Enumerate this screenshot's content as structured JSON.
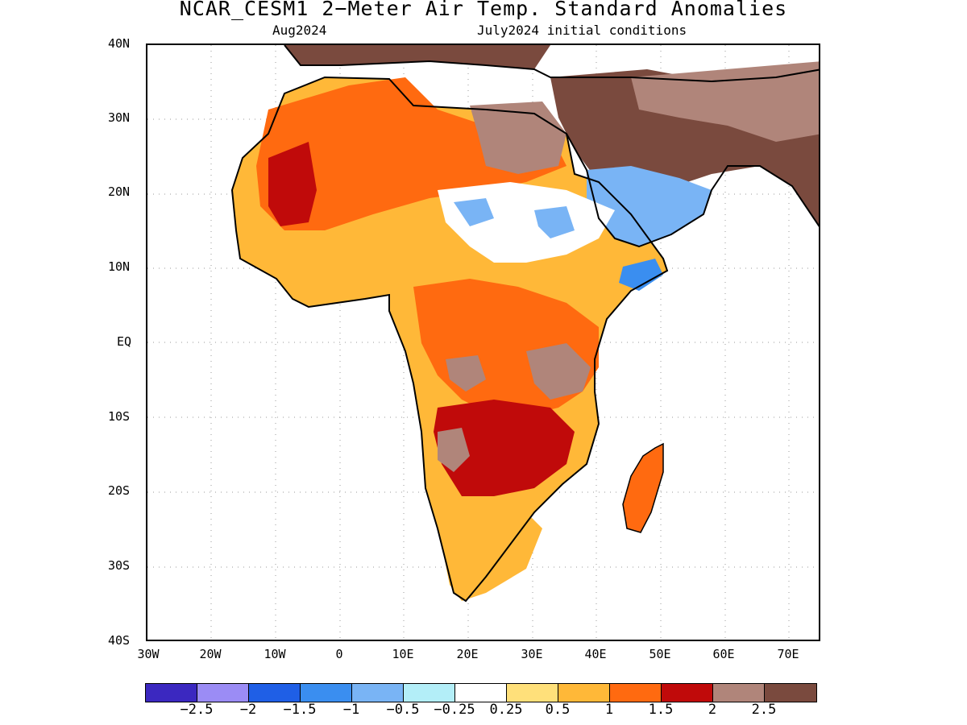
{
  "title": "NCAR_CESM1 2−Meter Air Temp. Standard Anomalies",
  "subtitle_left": "Aug2024",
  "subtitle_right": "July2024 initial conditions",
  "axes": {
    "lat_labels": [
      "40N",
      "30N",
      "20N",
      "10N",
      "EQ",
      "10S",
      "20S",
      "30S",
      "40S"
    ],
    "lon_labels": [
      "30W",
      "20W",
      "10W",
      "0",
      "10E",
      "20E",
      "30E",
      "40E",
      "50E",
      "60E",
      "70E"
    ],
    "lat_range": [
      -40,
      40
    ],
    "lon_range": [
      -30,
      75
    ],
    "grid": "dotted"
  },
  "colorbar": {
    "colors": [
      "#3b28c0",
      "#9b8cf5",
      "#1f5fe6",
      "#3a8ef0",
      "#79b4f5",
      "#b3eef8",
      "#ffffff",
      "#ffe07a",
      "#ffb838",
      "#ff6a10",
      "#c00a0a",
      "#b0857a",
      "#7a4a3e"
    ],
    "labels": [
      "−2.5",
      "−2",
      "−1.5",
      "−1",
      "−0.5",
      "−0.25",
      "0.25",
      "0.5",
      "1",
      "1.5",
      "2",
      "2.5"
    ]
  }
}
